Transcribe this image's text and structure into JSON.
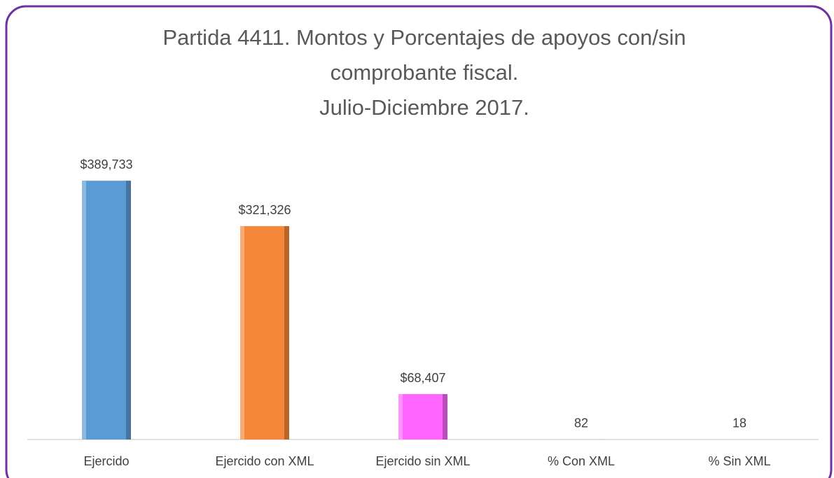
{
  "chart_data": {
    "type": "bar",
    "title": [
      "Partida 4411. Montos y Porcentajes de apoyos con/sin",
      "comprobante fiscal.",
      "Julio-Diciembre 2017."
    ],
    "categories": [
      "Ejercido",
      "Ejercido con XML",
      "Ejercido sin XML",
      "% Con XML",
      "% Sin XML"
    ],
    "values": [
      389733,
      321326,
      68407,
      82,
      18
    ],
    "value_labels": [
      "$389,733",
      "$321,326",
      "$68,407",
      "82",
      "18"
    ],
    "colors": [
      "#5b9bd5",
      "#f5873a",
      "#ff66ff",
      "#a5a5a5",
      "#ffc000"
    ],
    "ylim": [
      0,
      450000
    ],
    "grid": false
  }
}
